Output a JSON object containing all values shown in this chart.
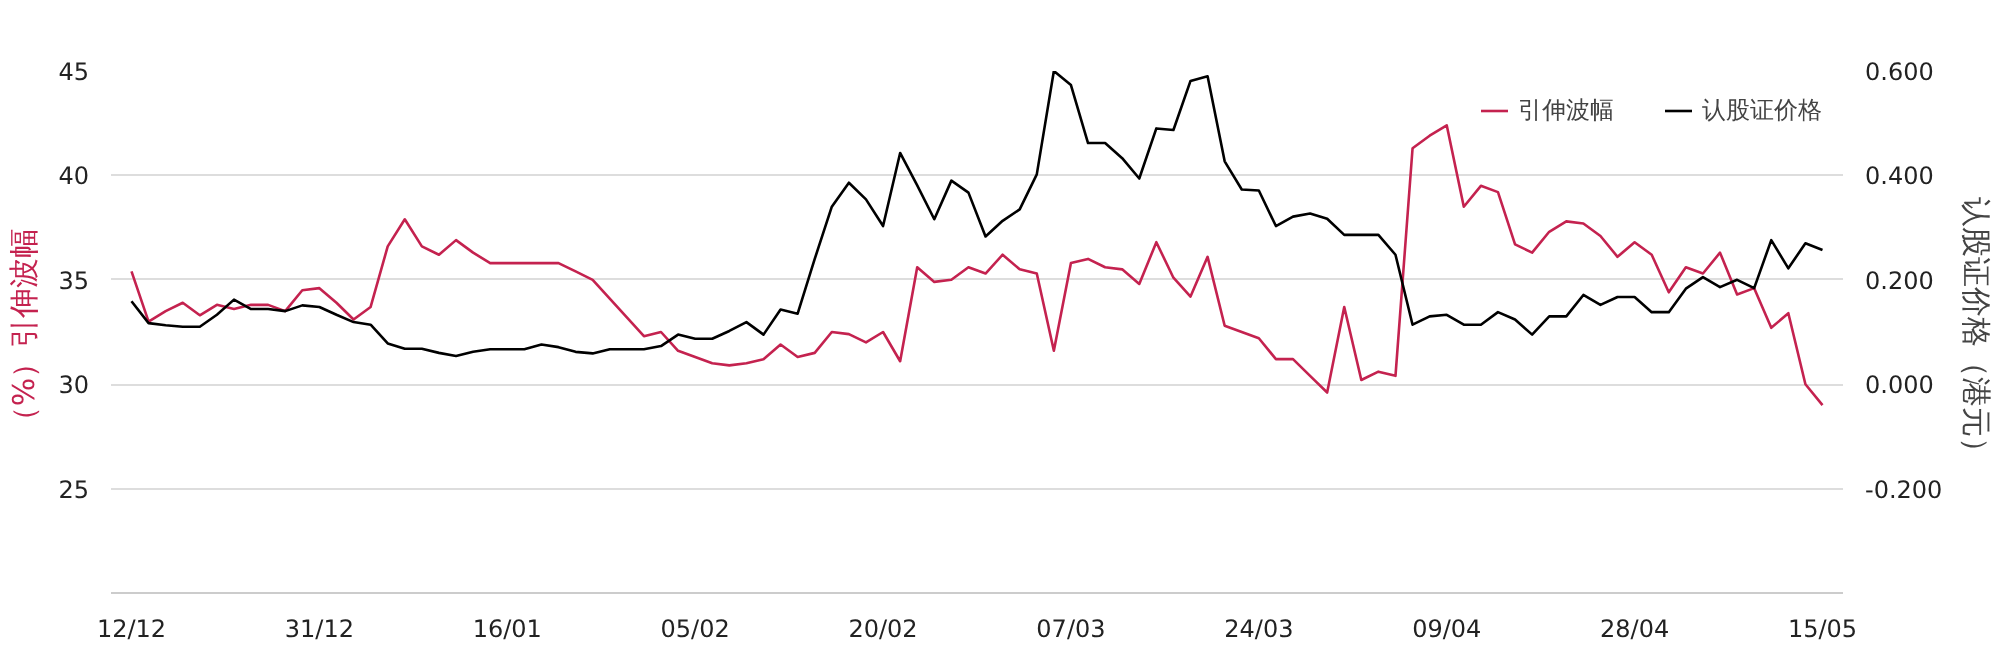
{
  "chart_data": {
    "type": "line",
    "categories": [
      "12/12",
      null,
      null,
      null,
      null,
      null,
      null,
      null,
      null,
      null,
      null,
      "31/12",
      null,
      null,
      null,
      null,
      null,
      null,
      null,
      null,
      null,
      null,
      "16/01",
      null,
      null,
      null,
      null,
      null,
      null,
      null,
      null,
      null,
      null,
      "05/02",
      null,
      null,
      null,
      null,
      null,
      null,
      null,
      null,
      null,
      null,
      "20/02",
      null,
      null,
      null,
      null,
      null,
      null,
      null,
      null,
      null,
      null,
      "07/03",
      null,
      null,
      null,
      null,
      null,
      null,
      null,
      null,
      null,
      null,
      "24/03",
      null,
      null,
      null,
      null,
      null,
      null,
      null,
      null,
      null,
      null,
      "09/04",
      null,
      null,
      null,
      null,
      null,
      null,
      null,
      null,
      null,
      null,
      "28/04",
      null,
      null,
      null,
      null,
      null,
      null,
      null,
      null,
      null,
      null,
      "15/05"
    ],
    "ylabel": "（%）引伸波幅",
    "y2label": "认股证价格（港元）",
    "ylim": [
      20,
      45
    ],
    "yticks": [
      {
        "value": 20,
        "label": null
      },
      25,
      30,
      35,
      40,
      45
    ],
    "y2lim": [
      -0.4,
      0.6
    ],
    "y2ticks": [
      {
        "value": -0.4,
        "label": null
      },
      {
        "value": -0.2,
        "label": "-0.200"
      },
      {
        "value": 0,
        "label": "0.000"
      },
      {
        "value": 0.2,
        "label": "0.200"
      },
      {
        "value": 0.4,
        "label": "0.400"
      },
      {
        "value": 0.6,
        "label": "0.600"
      }
    ],
    "grid": "y",
    "legend": "top right",
    "line_style": "solid",
    "series": [
      {
        "name": "引伸波幅",
        "color": "#c4224f",
        "values": [
          35.4,
          33.0,
          33.5,
          33.9,
          33.3,
          33.8,
          33.6,
          33.8,
          33.8,
          33.5,
          34.5,
          34.6,
          33.9,
          33.1,
          33.7,
          36.6,
          37.9,
          36.6,
          36.2,
          36.9,
          36.3,
          35.8,
          35.8,
          35.8,
          35.8,
          35.8,
          35.4,
          35.0,
          34.1,
          33.2,
          32.3,
          32.5,
          31.6,
          31.3,
          31.0,
          30.9,
          31.0,
          31.2,
          31.9,
          31.3,
          31.5,
          32.5,
          32.4,
          32.0,
          32.5,
          31.1,
          35.6,
          34.9,
          35.0,
          35.6,
          35.3,
          36.2,
          35.5,
          35.3,
          31.6,
          35.8,
          36.0,
          35.6,
          35.5,
          34.8,
          36.8,
          35.1,
          34.2,
          36.1,
          32.8,
          32.5,
          32.2,
          31.2,
          31.2,
          30.4,
          29.6,
          33.7,
          30.2,
          30.6,
          30.4,
          41.3,
          41.9,
          42.4,
          38.5,
          39.5,
          39.2,
          36.7,
          36.3,
          37.3,
          37.8,
          37.7,
          37.1,
          36.1,
          36.8,
          36.2,
          34.4,
          35.6,
          35.3,
          36.3,
          34.3,
          34.6,
          32.7,
          33.4,
          30.0,
          29.0
        ]
      },
      {
        "name": "认股证价格",
        "color": "#000000",
        "axis": "y2",
        "values": [
          0.159,
          0.117,
          0.113,
          0.11,
          0.11,
          0.133,
          0.162,
          0.144,
          0.144,
          0.14,
          0.151,
          0.148,
          0.133,
          0.119,
          0.114,
          0.078,
          0.068,
          0.068,
          0.06,
          0.054,
          0.062,
          0.067,
          0.067,
          0.067,
          0.076,
          0.071,
          0.062,
          0.059,
          0.067,
          0.067,
          0.067,
          0.073,
          0.095,
          0.087,
          0.087,
          0.102,
          0.119,
          0.095,
          0.143,
          0.135,
          0.24,
          0.34,
          0.386,
          0.354,
          0.303,
          0.443,
          0.381,
          0.316,
          0.39,
          0.367,
          0.283,
          0.313,
          0.335,
          0.402,
          0.6,
          0.573,
          0.462,
          0.462,
          0.433,
          0.394,
          0.49,
          0.487,
          0.581,
          0.59,
          0.427,
          0.373,
          0.371,
          0.303,
          0.321,
          0.327,
          0.317,
          0.286,
          0.286,
          0.286,
          0.248,
          0.114,
          0.13,
          0.133,
          0.114,
          0.114,
          0.138,
          0.124,
          0.095,
          0.13,
          0.13,
          0.171,
          0.152,
          0.167,
          0.167,
          0.138,
          0.138,
          0.183,
          0.205,
          0.186,
          0.2,
          0.184,
          0.276,
          0.222,
          0.27,
          0.257
        ]
      }
    ]
  }
}
